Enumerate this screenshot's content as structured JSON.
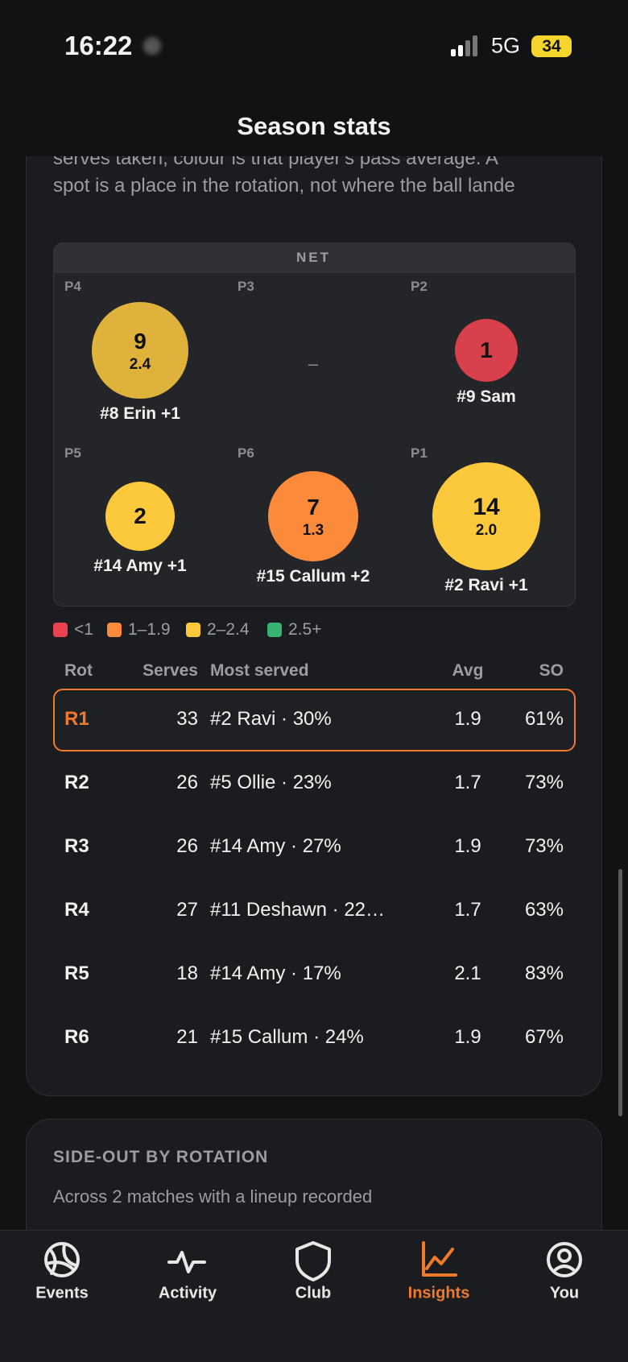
{
  "status": {
    "time": "16:22",
    "network": "5G",
    "battery": "34"
  },
  "header": {
    "title": "Season stats"
  },
  "intro": {
    "lines": [
      "serves taken; colour is that player's pass average. A",
      "spot is a place in the rotation, not where the ball lande"
    ]
  },
  "court": {
    "net": "NET",
    "placeholder": "–",
    "positions": [
      {
        "label": "P4",
        "count": 9,
        "avg": "2.4",
        "name": "#8 Erin +1",
        "color": "#dfb23c"
      },
      {
        "label": "P3"
      },
      {
        "label": "P2",
        "count": 1,
        "name": "#9 Sam",
        "color": "#d8404b"
      },
      {
        "label": "P5",
        "count": 2,
        "name": "#14 Amy +1",
        "color": "#fcc83c"
      },
      {
        "label": "P6",
        "count": 7,
        "avg": "1.3",
        "name": "#15 Callum +2",
        "color": "#fb8b3b"
      },
      {
        "label": "P1",
        "count": 14,
        "avg": "2.0",
        "name": "#2 Ravi +1",
        "color": "#fcc83c"
      }
    ]
  },
  "legend": [
    {
      "label": "<1",
      "color": "#e8434f"
    },
    {
      "label": "1–1.9",
      "color": "#fb8b3b"
    },
    {
      "label": "2–2.4",
      "color": "#fcc83c"
    },
    {
      "label": "2.5+",
      "color": "#35b36f"
    }
  ],
  "table": {
    "columns": [
      "Rot",
      "Serves",
      "Most served",
      "Avg",
      "SO"
    ],
    "highlight_row": 0,
    "rows": [
      [
        "R1",
        33,
        "#2 Ravi · 30%",
        "1.9",
        "61%"
      ],
      [
        "R2",
        26,
        "#5 Ollie · 23%",
        "1.7",
        "73%"
      ],
      [
        "R3",
        26,
        "#14 Amy · 27%",
        "1.9",
        "73%"
      ],
      [
        "R4",
        27,
        "#11 Deshawn · 22…",
        "1.7",
        "63%"
      ],
      [
        "R5",
        18,
        "#14 Amy · 17%",
        "2.1",
        "83%"
      ],
      [
        "R6",
        21,
        "#15 Callum · 24%",
        "1.9",
        "67%"
      ]
    ]
  },
  "side_out": {
    "title": "SIDE-OUT BY ROTATION",
    "subtitle": "Across 2 matches with a lineup recorded"
  },
  "tabs": {
    "active": 3,
    "items": [
      "Events",
      "Activity",
      "Club",
      "Insights",
      "You"
    ]
  }
}
